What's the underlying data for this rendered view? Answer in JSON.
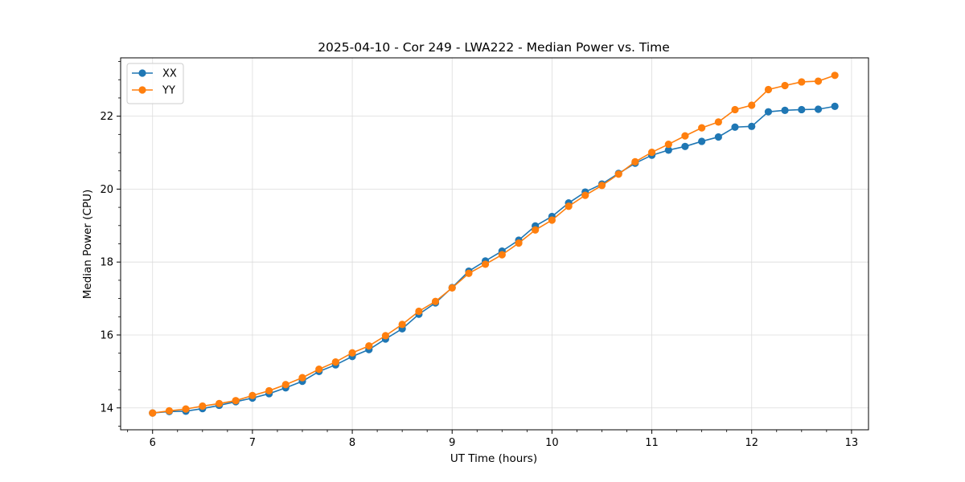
{
  "chart_data": {
    "type": "line",
    "title": "2025-04-10 - Cor 249 - LWA222 - Median Power vs. Time",
    "xlabel": "UT Time (hours)",
    "ylabel": "Median Power (CPU)",
    "xlim": [
      5.68,
      13.17
    ],
    "ylim": [
      13.4,
      23.6
    ],
    "xticks": [
      6,
      7,
      8,
      9,
      10,
      11,
      12,
      13
    ],
    "xtick_labels": [
      "6",
      "7",
      "8",
      "9",
      "10",
      "11",
      "12",
      "13"
    ],
    "yticks": [
      14,
      16,
      18,
      20,
      22
    ],
    "ytick_labels": [
      "14",
      "16",
      "18",
      "20",
      "22"
    ],
    "grid": true,
    "legend_position": "top-left",
    "x": [
      6.0,
      6.167,
      6.333,
      6.5,
      6.667,
      6.833,
      7.0,
      7.167,
      7.333,
      7.5,
      7.667,
      7.833,
      8.0,
      8.167,
      8.333,
      8.5,
      8.667,
      8.833,
      9.0,
      9.167,
      9.333,
      9.5,
      9.667,
      9.833,
      10.0,
      10.167,
      10.333,
      10.5,
      10.667,
      10.833,
      11.0,
      11.167,
      11.333,
      11.5,
      11.667,
      11.833,
      12.0,
      12.167,
      12.333,
      12.5,
      12.667,
      12.833
    ],
    "series": [
      {
        "name": "XX",
        "color": "#1f77b4",
        "values": [
          13.86,
          13.9,
          13.91,
          13.98,
          14.07,
          14.17,
          14.27,
          14.39,
          14.55,
          14.73,
          15.0,
          15.18,
          15.41,
          15.6,
          15.89,
          16.17,
          16.57,
          16.88,
          17.3,
          17.75,
          18.03,
          18.3,
          18.6,
          18.99,
          19.25,
          19.62,
          19.92,
          20.14,
          20.43,
          20.71,
          20.93,
          21.07,
          21.17,
          21.31,
          21.43,
          21.7,
          21.72,
          22.12,
          22.16,
          22.18,
          22.19,
          22.27
        ]
      },
      {
        "name": "YY",
        "color": "#ff7f0e",
        "values": [
          13.86,
          13.92,
          13.97,
          14.05,
          14.12,
          14.2,
          14.34,
          14.47,
          14.64,
          14.83,
          15.06,
          15.26,
          15.51,
          15.7,
          15.98,
          16.29,
          16.65,
          16.92,
          17.29,
          17.69,
          17.94,
          18.2,
          18.52,
          18.88,
          19.15,
          19.53,
          19.83,
          20.1,
          20.41,
          20.75,
          21.01,
          21.23,
          21.46,
          21.68,
          21.84,
          22.18,
          22.3,
          22.73,
          22.84,
          22.94,
          22.96,
          23.12
        ]
      }
    ]
  }
}
